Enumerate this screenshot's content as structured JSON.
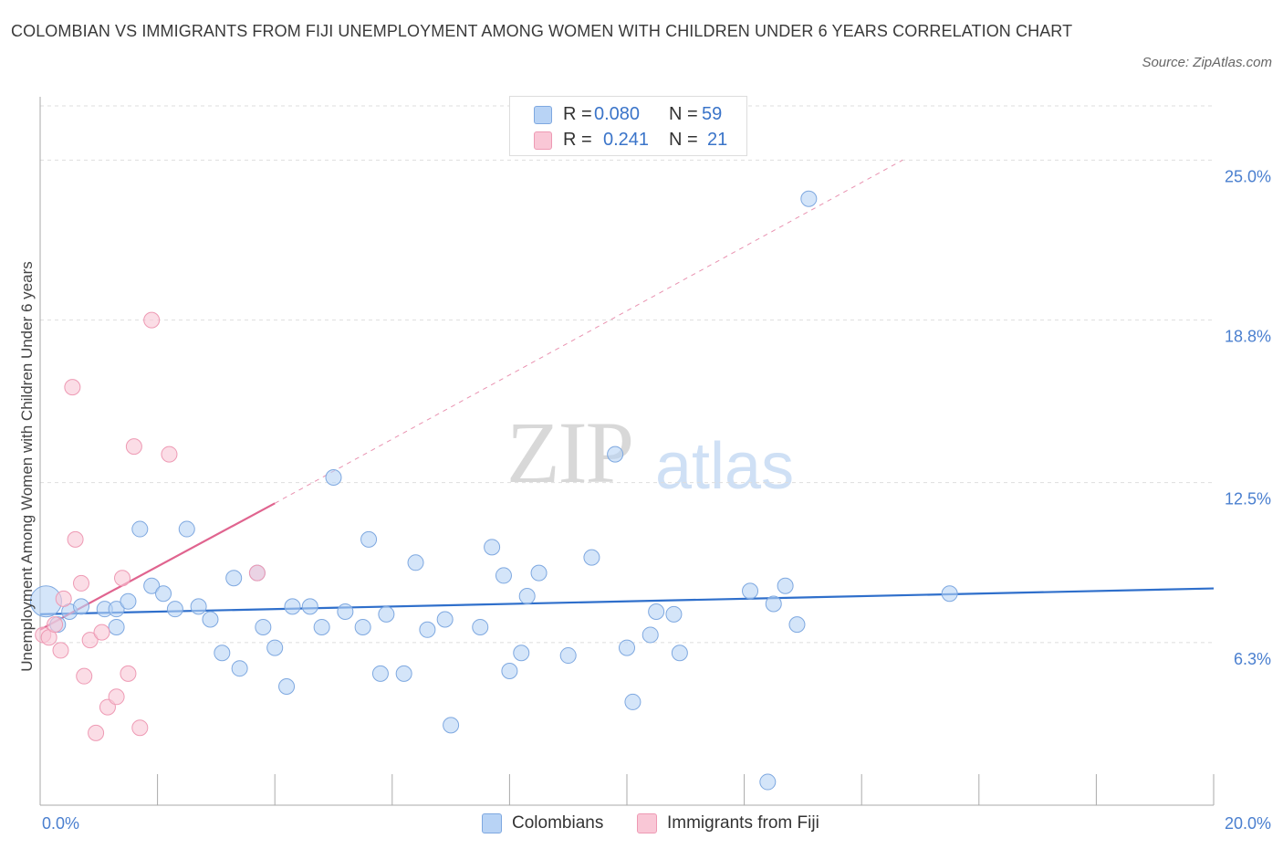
{
  "title": "COLOMBIAN VS IMMIGRANTS FROM FIJI UNEMPLOYMENT AMONG WOMEN WITH CHILDREN UNDER 6 YEARS CORRELATION CHART",
  "source": "Source: ZipAtlas.com",
  "watermark": {
    "zip": "ZIP",
    "atlas": "atlas"
  },
  "colors": {
    "colombians_fill": "#b8d3f5",
    "colombians_stroke": "#7ea8e0",
    "colombians_line": "#2f6fcb",
    "fiji_fill": "#f9c7d6",
    "fiji_stroke": "#ee9ab4",
    "fiji_line": "#e0648f",
    "tick_text": "#4a7fcf",
    "grid": "#dedede"
  },
  "legend": {
    "rows": [
      {
        "r_label": "R =",
        "r_value": "0.080",
        "n_label": "N =",
        "n_value": "59"
      },
      {
        "r_label": "R =",
        "r_value": "0.241",
        "n_label": "N =",
        "n_value": "21"
      }
    ]
  },
  "bottom_legend": [
    "Colombians",
    "Immigrants from Fiji"
  ],
  "chart_data": {
    "type": "scatter",
    "title": "COLOMBIAN VS IMMIGRANTS FROM FIJI UNEMPLOYMENT AMONG WOMEN WITH CHILDREN UNDER 6 YEARS CORRELATION CHART",
    "xlabel": "",
    "ylabel": "Unemployment Among Women with Children Under 6 years",
    "xlim": [
      0,
      20
    ],
    "ylim": [
      0,
      25
    ],
    "x_tick_labels": [
      "0.0%",
      "20.0%"
    ],
    "y_ticks": [
      6.3,
      12.5,
      18.8,
      25.0
    ],
    "y_tick_labels": [
      "6.3%",
      "12.5%",
      "18.8%",
      "25.0%"
    ],
    "grid": true,
    "legend_placement": "top-center",
    "series": [
      {
        "name": "Colombians",
        "r": 0.08,
        "n": 59,
        "trend": {
          "x": [
            0,
            20
          ],
          "y": [
            7.4,
            8.4
          ],
          "style": "solid"
        },
        "points": [
          {
            "x": 0.1,
            "y": 7.9,
            "size": "large"
          },
          {
            "x": 0.3,
            "y": 7.0
          },
          {
            "x": 0.5,
            "y": 7.5
          },
          {
            "x": 0.7,
            "y": 7.7
          },
          {
            "x": 1.1,
            "y": 7.6
          },
          {
            "x": 1.3,
            "y": 7.6
          },
          {
            "x": 1.3,
            "y": 6.9
          },
          {
            "x": 1.5,
            "y": 7.9
          },
          {
            "x": 1.7,
            "y": 10.7
          },
          {
            "x": 1.9,
            "y": 8.5
          },
          {
            "x": 2.1,
            "y": 8.2
          },
          {
            "x": 2.3,
            "y": 7.6
          },
          {
            "x": 2.5,
            "y": 10.7
          },
          {
            "x": 2.7,
            "y": 7.7
          },
          {
            "x": 2.9,
            "y": 7.2
          },
          {
            "x": 3.1,
            "y": 5.9
          },
          {
            "x": 3.3,
            "y": 8.8
          },
          {
            "x": 3.4,
            "y": 5.3
          },
          {
            "x": 3.7,
            "y": 9.0
          },
          {
            "x": 3.8,
            "y": 6.9
          },
          {
            "x": 4.0,
            "y": 6.1
          },
          {
            "x": 4.2,
            "y": 4.6
          },
          {
            "x": 4.3,
            "y": 7.7
          },
          {
            "x": 4.6,
            "y": 7.7
          },
          {
            "x": 4.8,
            "y": 6.9
          },
          {
            "x": 5.0,
            "y": 12.7
          },
          {
            "x": 5.2,
            "y": 7.5
          },
          {
            "x": 5.5,
            "y": 6.9
          },
          {
            "x": 5.6,
            "y": 10.3
          },
          {
            "x": 5.8,
            "y": 5.1
          },
          {
            "x": 5.9,
            "y": 7.4
          },
          {
            "x": 6.2,
            "y": 5.1
          },
          {
            "x": 6.4,
            "y": 9.4
          },
          {
            "x": 6.6,
            "y": 6.8
          },
          {
            "x": 6.9,
            "y": 7.2
          },
          {
            "x": 7.0,
            "y": 3.1
          },
          {
            "x": 7.5,
            "y": 6.9
          },
          {
            "x": 7.7,
            "y": 10.0
          },
          {
            "x": 7.9,
            "y": 8.9
          },
          {
            "x": 8.0,
            "y": 5.2
          },
          {
            "x": 8.2,
            "y": 5.9
          },
          {
            "x": 8.3,
            "y": 8.1
          },
          {
            "x": 8.5,
            "y": 9.0
          },
          {
            "x": 9.0,
            "y": 5.8
          },
          {
            "x": 9.4,
            "y": 9.6
          },
          {
            "x": 9.8,
            "y": 13.6
          },
          {
            "x": 10.0,
            "y": 6.1
          },
          {
            "x": 10.1,
            "y": 4.0
          },
          {
            "x": 10.4,
            "y": 6.6
          },
          {
            "x": 10.5,
            "y": 7.5
          },
          {
            "x": 10.8,
            "y": 7.4
          },
          {
            "x": 10.9,
            "y": 5.9
          },
          {
            "x": 12.1,
            "y": 8.3
          },
          {
            "x": 12.4,
            "y": 0.9
          },
          {
            "x": 12.5,
            "y": 7.8
          },
          {
            "x": 12.7,
            "y": 8.5
          },
          {
            "x": 12.9,
            "y": 7.0
          },
          {
            "x": 13.1,
            "y": 23.5
          },
          {
            "x": 15.5,
            "y": 8.2
          }
        ]
      },
      {
        "name": "Immigrants from Fiji",
        "r": 0.241,
        "n": 21,
        "trend": {
          "x": [
            0,
            4.0
          ],
          "y": [
            6.8,
            11.7
          ],
          "style": "solid",
          "extension": {
            "x": [
              4.0,
              14.7
            ],
            "y": [
              11.7,
              25.0
            ],
            "style": "dashed"
          }
        },
        "points": [
          {
            "x": 0.05,
            "y": 6.6
          },
          {
            "x": 0.15,
            "y": 6.5
          },
          {
            "x": 0.25,
            "y": 7.0
          },
          {
            "x": 0.35,
            "y": 6.0
          },
          {
            "x": 0.4,
            "y": 8.0
          },
          {
            "x": 0.55,
            "y": 16.2
          },
          {
            "x": 0.6,
            "y": 10.3
          },
          {
            "x": 0.7,
            "y": 8.6
          },
          {
            "x": 0.75,
            "y": 5.0
          },
          {
            "x": 0.85,
            "y": 6.4
          },
          {
            "x": 0.95,
            "y": 2.8
          },
          {
            "x": 1.05,
            "y": 6.7
          },
          {
            "x": 1.15,
            "y": 3.8
          },
          {
            "x": 1.3,
            "y": 4.2
          },
          {
            "x": 1.4,
            "y": 8.8
          },
          {
            "x": 1.5,
            "y": 5.1
          },
          {
            "x": 1.6,
            "y": 13.9
          },
          {
            "x": 1.7,
            "y": 3.0
          },
          {
            "x": 1.9,
            "y": 18.8
          },
          {
            "x": 2.2,
            "y": 13.6
          },
          {
            "x": 3.7,
            "y": 9.0
          }
        ]
      }
    ]
  },
  "plot_labels": {
    "y_axis_title": "Unemployment Among Women with Children Under 6 years"
  }
}
